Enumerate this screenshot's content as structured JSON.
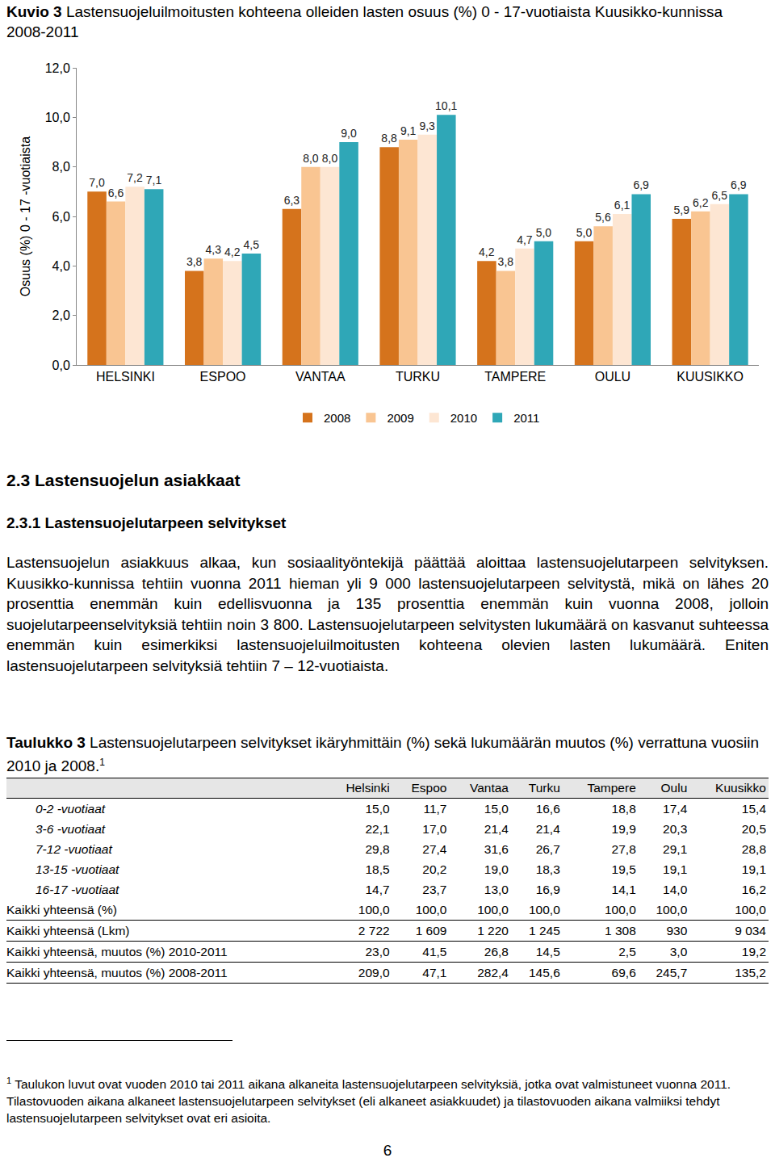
{
  "chart_data": {
    "type": "bar",
    "title": "Kuvio 3 Lastensuojeluilmoitusten kohteena olleiden lasten osuus (%) 0 - 17-vuotiaista Kuusikko-kunnissa 2008-2011",
    "y_label": "Osuus (%) 0 - 17 -vuotiaista",
    "categories": [
      "HELSINKI",
      "ESPOO",
      "VANTAA",
      "TURKU",
      "TAMPERE",
      "OULU",
      "KUUSIKKO"
    ],
    "series": [
      {
        "name": "2008",
        "color": "#d5731c",
        "values": [
          7.0,
          3.8,
          6.3,
          8.8,
          4.2,
          5.0,
          5.9
        ],
        "value_labels": [
          "7,0",
          "3,8",
          "6,3",
          "8,8",
          "4,2",
          "5,0",
          "5,9"
        ]
      },
      {
        "name": "2009",
        "color": "#f9c592",
        "values": [
          6.6,
          4.3,
          8.0,
          9.1,
          3.8,
          5.6,
          6.2
        ],
        "value_labels": [
          "6,6",
          "4,3",
          "8,0",
          "9,1",
          "3,8",
          "5,6",
          "6,2"
        ]
      },
      {
        "name": "2010",
        "color": "#fde6d3",
        "values": [
          7.2,
          4.2,
          8.0,
          9.3,
          4.7,
          6.1,
          6.5
        ],
        "value_labels": [
          "7,2",
          "4,2",
          "8,0",
          "9,3",
          "4,7",
          "6,1",
          "6,5"
        ]
      },
      {
        "name": "2011",
        "color": "#2fa7b7",
        "values": [
          7.1,
          4.5,
          9.0,
          10.1,
          5.0,
          6.9,
          6.9
        ],
        "value_labels": [
          "7,1",
          "4,5",
          "9,0",
          "10,1",
          "5,0",
          "6,9",
          "6,9"
        ]
      }
    ],
    "ylim": [
      0,
      12
    ],
    "yticks": [
      {
        "value": 0,
        "label": "0,0"
      },
      {
        "value": 2,
        "label": "2,0"
      },
      {
        "value": 4,
        "label": "4,0"
      },
      {
        "value": 6,
        "label": "6,0"
      },
      {
        "value": 8,
        "label": "8,0"
      },
      {
        "value": 10,
        "label": "10,0"
      },
      {
        "value": 12,
        "label": "12,0"
      }
    ],
    "grid": false,
    "legend": "bottom",
    "data_labels": true
  },
  "document": {
    "heading": "2.3 Lastensuojelun asiakkaat",
    "subheading": "2.3.1 Lastensuojelutarpeen selvitykset",
    "paragraph": "Lastensuojelun asiakkuus alkaa, kun sosiaalityöntekijä päättää aloittaa lastensuojelutarpeen selvityksen. Kuusikko-kunnissa tehtiin vuonna 2011 hieman yli 9 000 lastensuojelutarpeen selvitystä, mikä on lähes 20 prosenttia enemmän kuin edellisvuonna ja 135 prosenttia enemmän kuin vuonna 2008, jolloin suojelutarpeenselvityksiä tehtiin noin 3 800. Lastensuojelutarpeen selvitysten lukumäärä on kasvanut suhteessa enemmän kuin esimerkiksi lastensuojeluilmoitusten kohteena olevien lasten lukumäärä. Eniten lastensuojelutarpeen selvityksiä tehtiin 7 – 12-vuotiaista.",
    "table_caption": {
      "label": "Taulukko 3",
      "text": "Lastensuojelutarpeen selvitykset ikäryhmittäin (%) sekä lukumäärän muutos (%) verrattuna vuosiin 2010 ja 2008.",
      "note": "1"
    },
    "table": {
      "header": [
        "",
        "Helsinki",
        "Espoo",
        "Vantaa",
        "Turku",
        "Tampere",
        "Oulu",
        "Kuusikko"
      ],
      "rows": [
        [
          "0-2 -vuotiaat",
          "15,0",
          "11,7",
          "15,0",
          "16,6",
          "18,8",
          "17,4",
          "15,4"
        ],
        [
          "3-6 -vuotiaat",
          "22,1",
          "17,0",
          "21,4",
          "21,4",
          "19,9",
          "20,3",
          "20,5"
        ],
        [
          "7-12 -vuotiaat",
          "29,8",
          "27,4",
          "31,6",
          "26,7",
          "27,8",
          "29,1",
          "28,8"
        ],
        [
          "13-15 -vuotiaat",
          "18,5",
          "20,2",
          "19,0",
          "18,3",
          "19,5",
          "19,1",
          "19,1"
        ],
        [
          "16-17 -vuotiaat",
          "14,7",
          "23,7",
          "13,0",
          "16,9",
          "14,1",
          "14,0",
          "16,2"
        ],
        [
          "Kaikki yhteensä (%)",
          "100,0",
          "100,0",
          "100,0",
          "100,0",
          "100,0",
          "100,0",
          "100,0"
        ],
        [
          "Kaikki yhteensä (Lkm)",
          "2 722",
          "1 609",
          "1 220",
          "1 245",
          "1 308",
          "930",
          "9 034"
        ],
        [
          "Kaikki yhteensä, muutos (%) 2010-2011",
          "23,0",
          "41,5",
          "26,8",
          "14,5",
          "2,5",
          "3,0",
          "19,2"
        ],
        [
          "Kaikki yhteensä, muutos (%) 2008-2011",
          "209,0",
          "47,1",
          "282,4",
          "145,6",
          "69,6",
          "245,7",
          "135,2"
        ]
      ],
      "total_rows_from": 5
    },
    "footnote": {
      "mark": "1",
      "text": "Taulukon luvut ovat vuoden 2010 tai 2011 aikana alkaneita lastensuojelutarpeen selvityksiä, jotka ovat valmistuneet vuonna 2011. Tilastovuoden aikana alkaneet lastensuojelutarpeen selvitykset (eli alkaneet asiakkuudet) ja tilastovuoden aikana valmiiksi tehdyt lastensuojelutarpeen selvitykset ovat eri asioita."
    },
    "page_number": "6"
  }
}
